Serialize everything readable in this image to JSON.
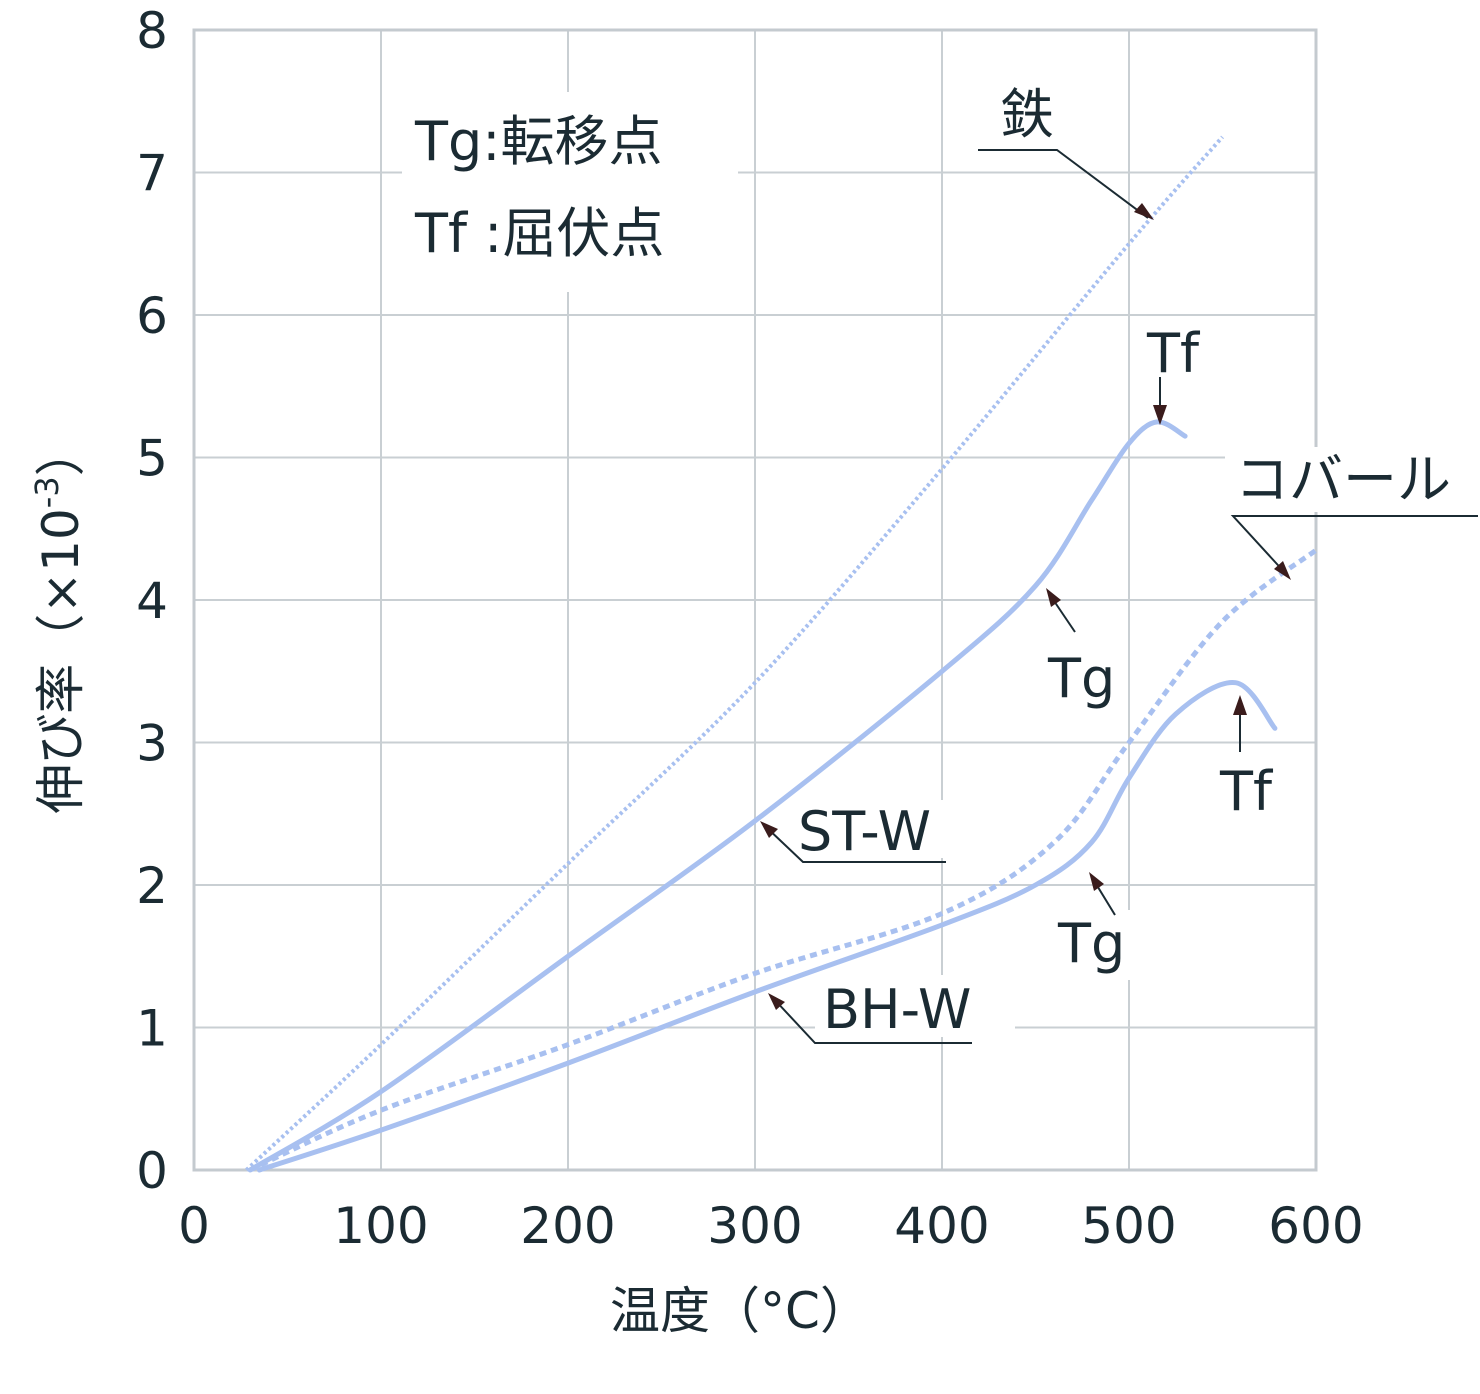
{
  "chart_data": {
    "type": "line",
    "xlabel": "温度（°C）",
    "ylabel": "伸び率（×10",
    "ylabel_sup": "-3",
    "ylabel_close": "）",
    "xlim": [
      0,
      600
    ],
    "ylim": [
      0,
      8
    ],
    "x_ticks": [
      "0",
      "100",
      "200",
      "300",
      "400",
      "500",
      "600"
    ],
    "y_ticks": [
      "0",
      "1",
      "2",
      "3",
      "4",
      "5",
      "6",
      "7",
      "8"
    ],
    "grid": true,
    "notes": [
      "Tg:転移点",
      "Tf :屈伏点"
    ],
    "line_color": "#a8c0f0",
    "series": [
      {
        "name": "鉄",
        "style": "dotted",
        "points": [
          [
            28,
            0
          ],
          [
            100,
            0.88
          ],
          [
            200,
            2.15
          ],
          [
            300,
            3.42
          ],
          [
            400,
            4.92
          ],
          [
            500,
            6.5
          ],
          [
            550,
            7.25
          ]
        ]
      },
      {
        "name": "コバール",
        "style": "dashed",
        "points": [
          [
            30,
            0
          ],
          [
            100,
            0.42
          ],
          [
            200,
            0.88
          ],
          [
            300,
            1.38
          ],
          [
            400,
            1.8
          ],
          [
            460,
            2.3
          ],
          [
            500,
            3.0
          ],
          [
            550,
            3.85
          ],
          [
            600,
            4.35
          ]
        ]
      },
      {
        "name": "ST-W",
        "style": "solid",
        "points": [
          [
            30,
            0
          ],
          [
            100,
            0.55
          ],
          [
            200,
            1.5
          ],
          [
            300,
            2.45
          ],
          [
            400,
            3.5
          ],
          [
            450,
            4.1
          ],
          [
            480,
            4.7
          ],
          [
            500,
            5.1
          ],
          [
            515,
            5.25
          ],
          [
            530,
            5.15
          ]
        ]
      },
      {
        "name": "BH-W",
        "style": "solid",
        "points": [
          [
            35,
            0
          ],
          [
            100,
            0.28
          ],
          [
            200,
            0.75
          ],
          [
            300,
            1.25
          ],
          [
            400,
            1.72
          ],
          [
            450,
            2.0
          ],
          [
            480,
            2.3
          ],
          [
            500,
            2.75
          ],
          [
            525,
            3.2
          ],
          [
            557,
            3.42
          ],
          [
            578,
            3.1
          ]
        ]
      }
    ],
    "annotations": [
      {
        "text": "鉄",
        "target": [
          545,
          6.65
        ]
      },
      {
        "text": "コバール",
        "target": [
          580,
          4.15
        ]
      },
      {
        "text": "ST-W",
        "target": [
          300,
          2.45
        ]
      },
      {
        "text": "BH-W",
        "target": [
          305,
          1.22
        ]
      },
      {
        "text": "Tf",
        "target": [
          515,
          5.25
        ]
      },
      {
        "text": "Tg",
        "target": [
          455,
          4.12
        ]
      },
      {
        "text": "Tf",
        "target": [
          557,
          3.42
        ]
      },
      {
        "text": "Tg",
        "target": [
          477,
          2.23
        ]
      }
    ]
  }
}
